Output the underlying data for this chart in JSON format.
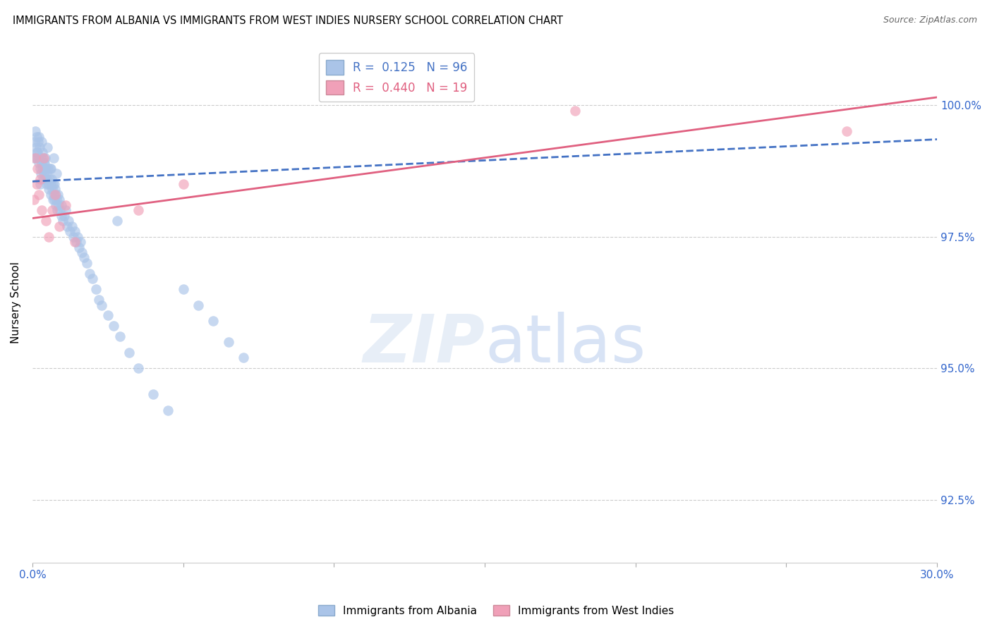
{
  "title": "IMMIGRANTS FROM ALBANIA VS IMMIGRANTS FROM WEST INDIES NURSERY SCHOOL CORRELATION CHART",
  "source": "Source: ZipAtlas.com",
  "ylabel": "Nursery School",
  "ylabel_tick_vals": [
    92.5,
    95.0,
    97.5,
    100.0
  ],
  "xlim": [
    0.0,
    30.0
  ],
  "ylim": [
    91.3,
    101.2
  ],
  "albania_R": 0.125,
  "albania_N": 96,
  "westindies_R": 0.44,
  "westindies_N": 19,
  "albania_color": "#aac4e8",
  "westindies_color": "#f0a0b8",
  "albania_line_color": "#4472c4",
  "westindies_line_color": "#e06080",
  "legend_label_albania": "Immigrants from Albania",
  "legend_label_westindies": "Immigrants from West Indies",
  "albania_x": [
    0.05,
    0.08,
    0.1,
    0.12,
    0.13,
    0.15,
    0.17,
    0.18,
    0.2,
    0.22,
    0.23,
    0.25,
    0.27,
    0.28,
    0.3,
    0.32,
    0.33,
    0.35,
    0.37,
    0.38,
    0.4,
    0.42,
    0.43,
    0.45,
    0.47,
    0.48,
    0.5,
    0.52,
    0.53,
    0.55,
    0.57,
    0.58,
    0.6,
    0.62,
    0.63,
    0.65,
    0.67,
    0.68,
    0.7,
    0.72,
    0.73,
    0.75,
    0.77,
    0.78,
    0.8,
    0.82,
    0.85,
    0.87,
    0.9,
    0.92,
    0.95,
    0.97,
    1.0,
    1.05,
    1.1,
    1.15,
    1.2,
    1.25,
    1.3,
    1.35,
    1.4,
    1.45,
    1.5,
    1.55,
    1.6,
    1.65,
    1.7,
    1.8,
    1.9,
    2.0,
    2.1,
    2.2,
    2.3,
    2.5,
    2.7,
    2.9,
    3.2,
    3.5,
    4.0,
    4.5,
    5.0,
    5.5,
    6.0,
    6.5,
    7.0,
    0.2,
    0.3,
    0.4,
    0.5,
    0.6,
    0.7,
    0.8,
    0.15,
    0.25,
    0.35,
    2.8
  ],
  "albania_y": [
    99.0,
    99.3,
    99.5,
    99.2,
    99.4,
    99.0,
    99.1,
    99.3,
    99.0,
    98.9,
    99.2,
    98.8,
    99.0,
    98.7,
    98.9,
    99.1,
    98.8,
    98.6,
    98.9,
    98.7,
    98.8,
    99.0,
    98.6,
    98.8,
    98.5,
    98.7,
    98.6,
    98.8,
    98.5,
    98.4,
    98.6,
    98.8,
    98.5,
    98.3,
    98.6,
    98.4,
    98.2,
    98.5,
    98.3,
    98.5,
    98.2,
    98.4,
    98.1,
    98.3,
    98.2,
    98.0,
    98.3,
    98.1,
    98.2,
    98.0,
    97.9,
    98.1,
    97.8,
    97.9,
    98.0,
    97.7,
    97.8,
    97.6,
    97.7,
    97.5,
    97.6,
    97.4,
    97.5,
    97.3,
    97.4,
    97.2,
    97.1,
    97.0,
    96.8,
    96.7,
    96.5,
    96.3,
    96.2,
    96.0,
    95.8,
    95.6,
    95.3,
    95.0,
    94.5,
    94.2,
    96.5,
    96.2,
    95.9,
    95.5,
    95.2,
    99.4,
    99.3,
    98.9,
    99.2,
    98.8,
    99.0,
    98.7,
    99.1,
    98.5,
    99.0,
    97.8
  ],
  "westindies_x": [
    0.05,
    0.1,
    0.13,
    0.17,
    0.2,
    0.25,
    0.3,
    0.37,
    0.45,
    0.55,
    0.65,
    0.75,
    0.9,
    1.1,
    1.4,
    3.5,
    5.0,
    18.0,
    27.0
  ],
  "westindies_y": [
    98.2,
    99.0,
    98.5,
    98.8,
    98.3,
    98.6,
    98.0,
    99.0,
    97.8,
    97.5,
    98.0,
    98.3,
    97.7,
    98.1,
    97.4,
    98.0,
    98.5,
    99.9,
    99.5
  ],
  "alb_line_x0": 0.0,
  "alb_line_y0": 98.55,
  "alb_line_x1": 30.0,
  "alb_line_y1": 99.35,
  "wi_line_x0": 0.0,
  "wi_line_y0": 97.85,
  "wi_line_x1": 30.0,
  "wi_line_y1": 100.15
}
